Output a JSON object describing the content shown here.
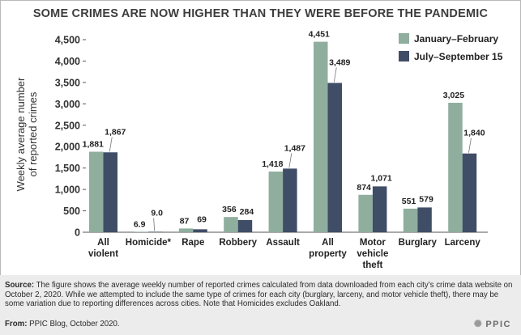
{
  "title": "SOME CRIMES ARE NOW HIGHER THAN THEY WERE BEFORE THE PANDEMIC",
  "colors": {
    "series1": "#8fae9e",
    "series2": "#404d66"
  },
  "chart_data": {
    "type": "bar",
    "categories": [
      "All violent",
      "Homicide*",
      "Rape",
      "Robbery",
      "Assault",
      "All property",
      "Motor vehicle theft",
      "Burglary",
      "Larceny"
    ],
    "category_lines": [
      [
        "All",
        "violent"
      ],
      [
        "Homicide*"
      ],
      [
        "Rape"
      ],
      [
        "Robbery"
      ],
      [
        "Assault"
      ],
      [
        "All",
        "property"
      ],
      [
        "Motor",
        "vehicle",
        "theft"
      ],
      [
        "Burglary"
      ],
      [
        "Larceny"
      ]
    ],
    "series": [
      {
        "name": "January–February",
        "values": [
          1881,
          6.9,
          87,
          356,
          1418,
          4451,
          874,
          551,
          3025
        ],
        "labels": [
          "1,881",
          "6.9",
          "87",
          "356",
          "1,418",
          "4,451",
          "874",
          "551",
          "3,025"
        ]
      },
      {
        "name": "July–September 15",
        "values": [
          1867,
          9.0,
          69,
          284,
          1487,
          3489,
          1071,
          579,
          1840
        ],
        "labels": [
          "1,867",
          "9.0",
          "69",
          "284",
          "1,487",
          "3,489",
          "1,071",
          "579",
          "1,840"
        ]
      }
    ],
    "ylabel_lines": [
      "Weekly average number",
      "of reported crimes"
    ],
    "ylim": [
      0,
      4500
    ],
    "yticks": [
      0,
      500,
      1000,
      1500,
      2000,
      2500,
      3000,
      3500,
      4000,
      4500
    ],
    "ytick_labels": [
      "0",
      "500",
      "1,000",
      "1,500",
      "2,000",
      "2,500",
      "3,000",
      "3,500",
      "4,000",
      "4,500"
    ],
    "grid": false,
    "legend_position": "top-right"
  },
  "footer": {
    "source_label": "Source:",
    "source_text": "The figure shows the average weekly number of reported crimes calculated from data downloaded from each city’s crime data website on October 2, 2020. While we attempted to include the same type of crimes for each city (burglary, larceny, and motor vehicle theft), there may be some variation due to reporting differences across cities. Note that Homicides excludes Oakland.",
    "from_label": "From:",
    "from_text": "PPIC Blog, October 2020.",
    "logo_text": "PPIC"
  }
}
